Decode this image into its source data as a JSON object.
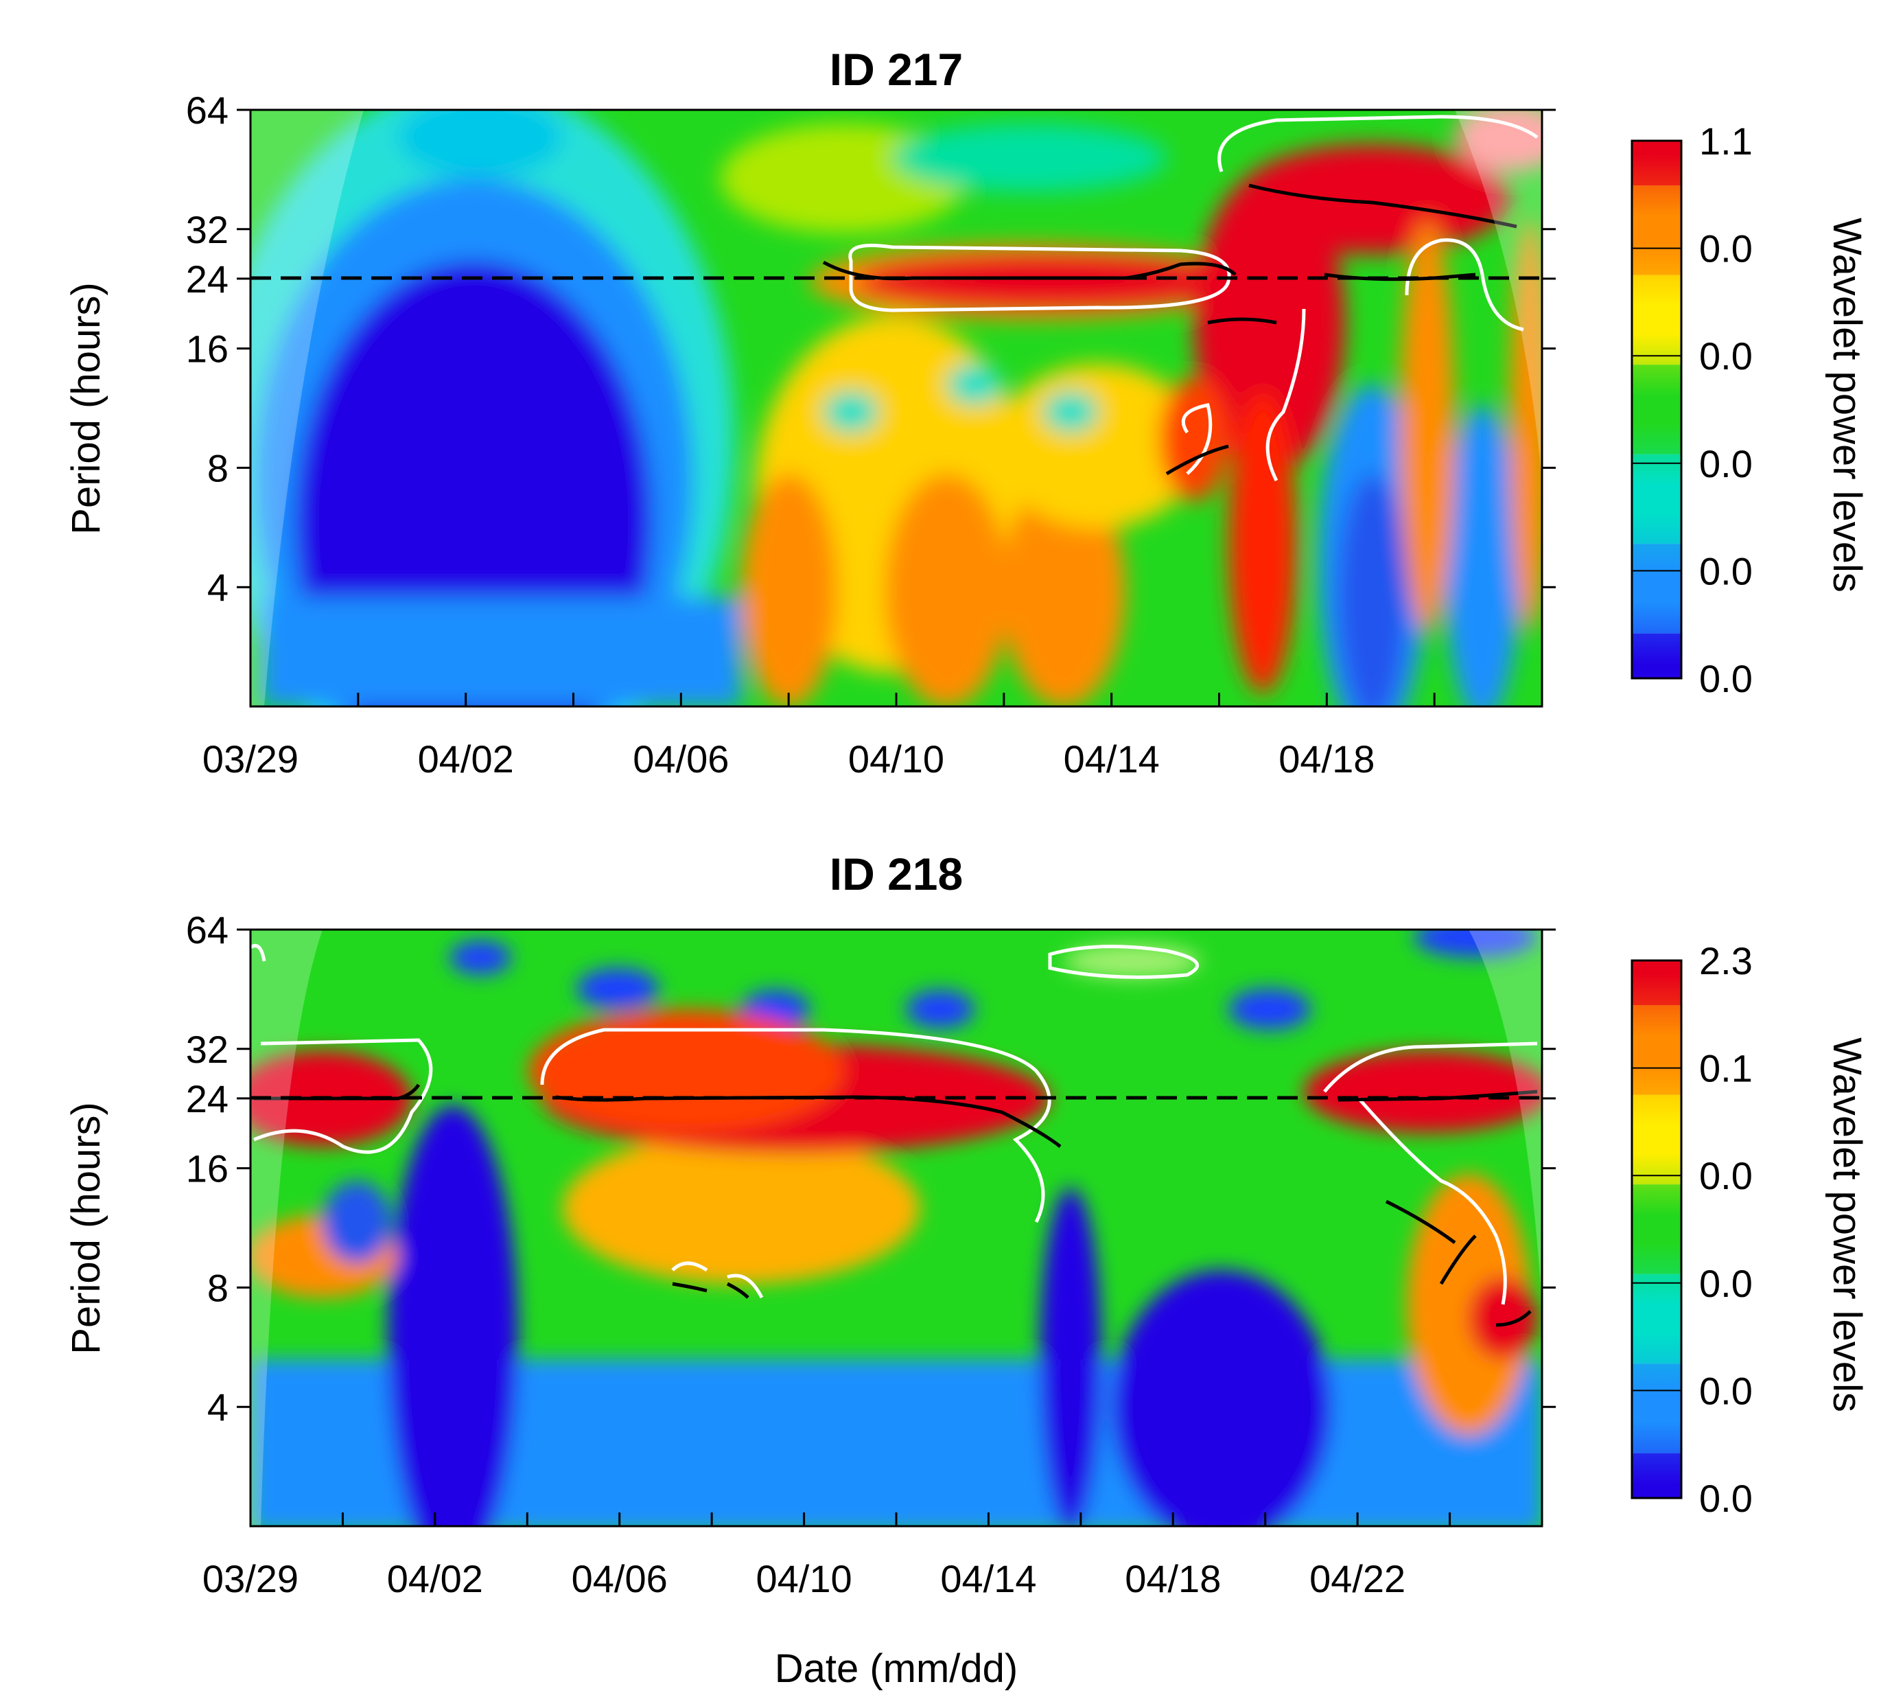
{
  "figure": {
    "xlabel": "Date (mm/dd)"
  },
  "chart_data": [
    {
      "type": "heatmap",
      "title": "ID 217",
      "ylabel": "Period (hours)",
      "y_scale": "log2",
      "ylim": [
        2,
        64
      ],
      "yticks": [
        4,
        8,
        16,
        24,
        32,
        64
      ],
      "xlim": [
        "03/29",
        "04/22"
      ],
      "xticks": [
        "03/29",
        "04/02",
        "04/06",
        "04/10",
        "04/14",
        "04/18"
      ],
      "reference_period_hours": 24,
      "colorbar": {
        "label": "Wavelet power levels",
        "levels": [
          "1.1",
          "0.0",
          "0.0",
          "0.0",
          "0.0",
          "0.0"
        ],
        "colors": [
          "#e8001a",
          "#ff8c00",
          "#ffee00",
          "#22d81e",
          "#00e0c8",
          "#1d8fff",
          "#2200e6"
        ]
      },
      "high_power_regions": [
        {
          "from": "04/08",
          "to": "04/20",
          "period_hours": [
            18,
            28
          ]
        },
        {
          "from": "04/15",
          "to": "04/17",
          "period_hours": [
            3,
            45
          ]
        },
        {
          "from": "04/16",
          "to": "04/22",
          "period_hours": [
            32,
            64
          ]
        }
      ],
      "low_power_regions": [
        {
          "from": "03/29",
          "to": "04/07",
          "period_hours": [
            2,
            40
          ]
        }
      ]
    },
    {
      "type": "heatmap",
      "title": "ID 218",
      "ylabel": "Period (hours)",
      "y_scale": "log2",
      "ylim": [
        2,
        64
      ],
      "yticks": [
        4,
        8,
        16,
        24,
        32,
        64
      ],
      "xlim": [
        "03/29",
        "04/26"
      ],
      "xticks": [
        "03/29",
        "04/02",
        "04/06",
        "04/10",
        "04/14",
        "04/18",
        "04/22"
      ],
      "reference_period_hours": 24,
      "colorbar": {
        "label": "Wavelet power levels",
        "levels": [
          "2.3",
          "0.1",
          "0.0",
          "0.0",
          "0.0",
          "0.0"
        ],
        "colors": [
          "#e8001a",
          "#ff8c00",
          "#ffee00",
          "#22d81e",
          "#00e0c8",
          "#1d8fff",
          "#2200e6"
        ]
      },
      "high_power_regions": [
        {
          "from": "03/29",
          "to": "04/01",
          "period_hours": [
            17,
            30
          ]
        },
        {
          "from": "04/04",
          "to": "04/15",
          "period_hours": [
            18,
            30
          ]
        },
        {
          "from": "04/21",
          "to": "04/26",
          "period_hours": [
            6,
            28
          ]
        }
      ],
      "low_power_regions": [
        {
          "from": "04/01",
          "to": "04/03",
          "period_hours": [
            2,
            24
          ]
        },
        {
          "from": "04/15",
          "to": "04/20",
          "period_hours": [
            2,
            10
          ]
        }
      ]
    }
  ]
}
